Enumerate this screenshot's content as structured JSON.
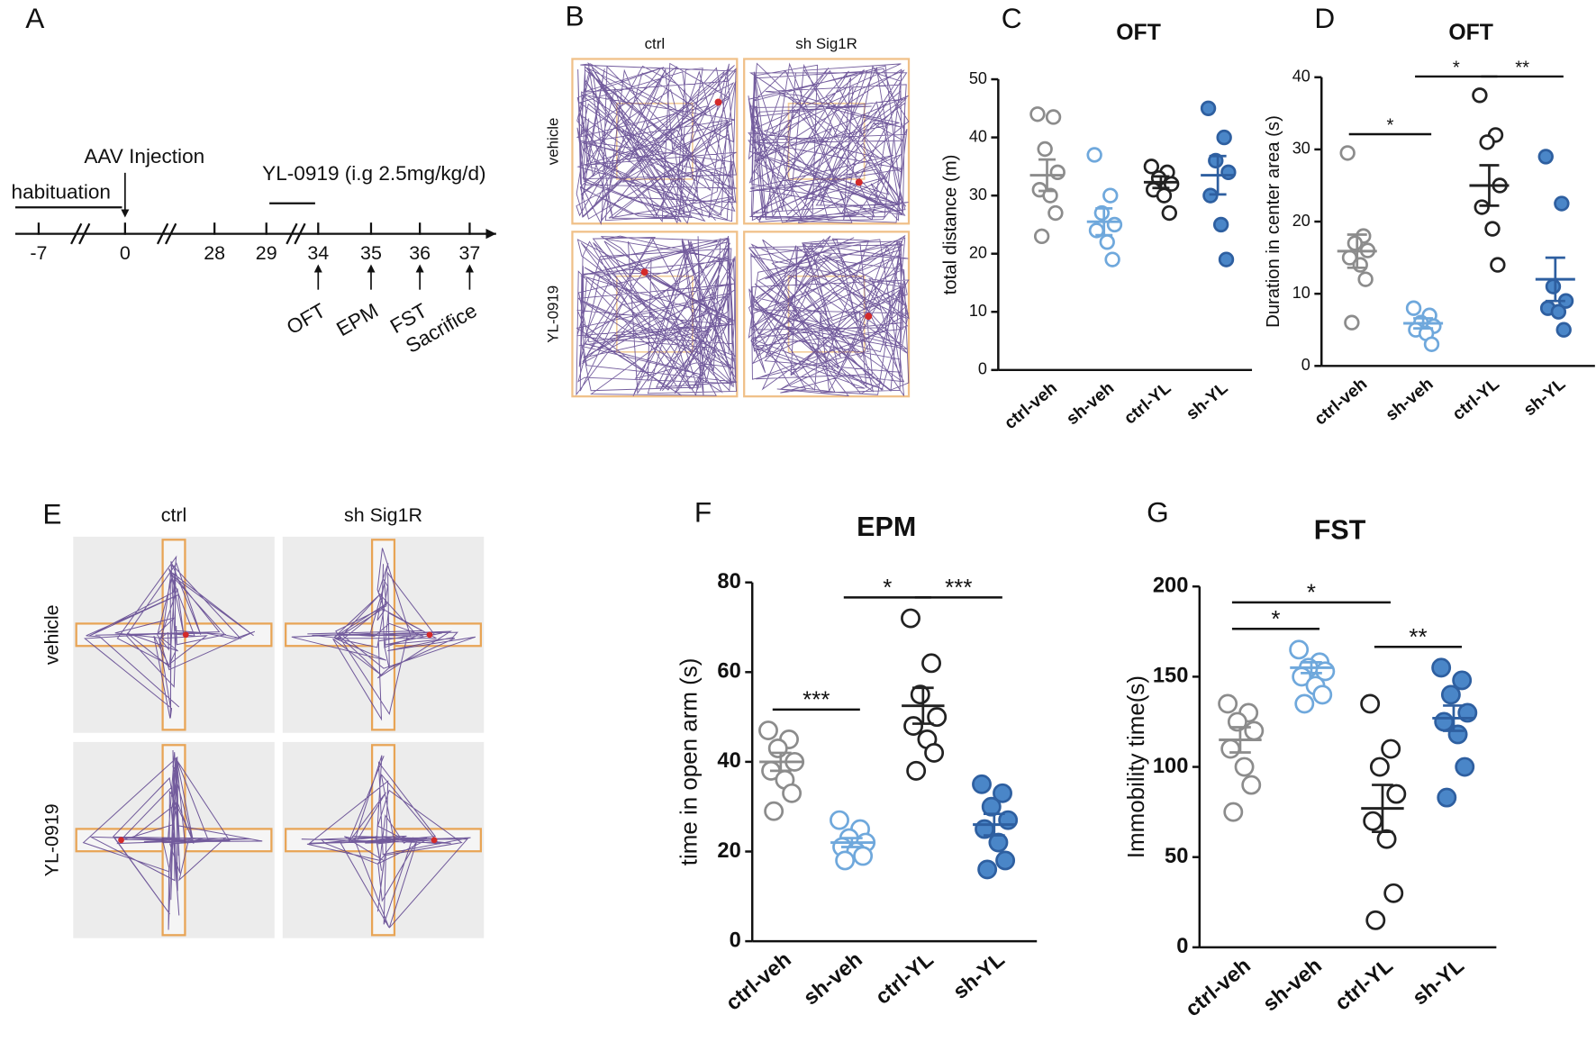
{
  "timeline": {
    "panel": "A",
    "habituation": "habituation",
    "injection": "AAV Injection",
    "treatment": "YL-0919 (i.g 2.5mg/kg/d)",
    "days": [
      -7,
      0,
      28,
      29,
      34,
      35,
      36,
      37
    ],
    "events": [
      "OFT",
      "EPM",
      "FST",
      "Sacrifice"
    ]
  },
  "tracks_oft": {
    "panel": "B",
    "columns": [
      "ctrl",
      "sh Sig1R"
    ],
    "rows": [
      "vehicle",
      "YL-0919"
    ]
  },
  "tracks_epm": {
    "panel": "E",
    "columns": [
      "ctrl",
      "sh Sig1R"
    ],
    "rows": [
      "vehicle",
      "YL-0919"
    ]
  },
  "chart_data": [
    {
      "type": "dot",
      "panel": "C",
      "title": "OFT",
      "ylabel": "total distance (m)",
      "ylim": [
        0,
        50
      ],
      "yticks": [
        0,
        10,
        20,
        30,
        40,
        50
      ],
      "series": [
        {
          "name": "ctrl-veh",
          "color": "#8c8c8c",
          "fill": "#ffffff",
          "values": [
            44,
            43.5,
            38,
            34,
            31,
            30,
            27,
            23
          ],
          "mean": 33.5,
          "sem": 2.7
        },
        {
          "name": "sh-veh",
          "color": "#6fa8dc",
          "fill": "#ffffff",
          "values": [
            37,
            30,
            27,
            25,
            24,
            22,
            19
          ],
          "mean": 25.5,
          "sem": 2.3
        },
        {
          "name": "ctrl-YL",
          "color": "#222222",
          "fill": "#ffffff",
          "values": [
            35,
            34,
            33,
            32,
            31,
            30,
            27
          ],
          "mean": 32.3,
          "sem": 1
        },
        {
          "name": "sh-YL",
          "color": "#2e5fa0",
          "fill": "#4a86c8",
          "values": [
            45,
            40,
            36,
            34,
            30,
            25,
            19
          ],
          "mean": 33.5,
          "sem": 3.3
        }
      ],
      "annotations": []
    },
    {
      "type": "dot",
      "panel": "D",
      "title": "OFT",
      "ylabel": "Duration in center area (s)",
      "ylim": [
        0,
        40
      ],
      "yticks": [
        0,
        10,
        20,
        30,
        40
      ],
      "series": [
        {
          "name": "ctrl-veh",
          "color": "#8c8c8c",
          "fill": "#ffffff",
          "values": [
            29.5,
            18,
            17,
            16,
            15,
            14,
            12,
            6
          ],
          "mean": 15.9,
          "sem": 2.3
        },
        {
          "name": "sh-veh",
          "color": "#6fa8dc",
          "fill": "#ffffff",
          "values": [
            8,
            7,
            6,
            5.5,
            5,
            4.5,
            3
          ],
          "mean": 5.9,
          "sem": 0.7
        },
        {
          "name": "ctrl-YL",
          "color": "#222222",
          "fill": "#ffffff",
          "values": [
            37.5,
            32,
            31,
            25,
            22,
            19,
            14
          ],
          "mean": 25,
          "sem": 2.8
        },
        {
          "name": "sh-YL",
          "color": "#2e5fa0",
          "fill": "#4a86c8",
          "values": [
            29,
            22.5,
            11,
            9,
            8,
            7.5,
            5
          ],
          "mean": 12,
          "sem": 3
        }
      ],
      "annotations": [
        {
          "from": 0,
          "to": 1,
          "label": "*"
        },
        {
          "from": 1,
          "to": 2,
          "label": "*"
        },
        {
          "from": 2,
          "to": 3,
          "label": "**"
        }
      ]
    },
    {
      "type": "dot",
      "panel": "F",
      "title": "EPM",
      "ylabel": "time in open arm (s)",
      "ylim": [
        0,
        80
      ],
      "yticks": [
        0,
        20,
        40,
        60,
        80
      ],
      "series": [
        {
          "name": "ctrl-veh",
          "color": "#8c8c8c",
          "fill": "#ffffff",
          "values": [
            47,
            45,
            43,
            40,
            38,
            36,
            33,
            29
          ],
          "mean": 40,
          "sem": 2
        },
        {
          "name": "sh-veh",
          "color": "#6fa8dc",
          "fill": "#ffffff",
          "values": [
            27,
            25,
            23,
            22,
            21,
            20,
            19,
            18
          ],
          "mean": 22,
          "sem": 1
        },
        {
          "name": "ctrl-YL",
          "color": "#222222",
          "fill": "#ffffff",
          "values": [
            72,
            62,
            55,
            50,
            48,
            45,
            42,
            38
          ],
          "mean": 52.5,
          "sem": 4
        },
        {
          "name": "sh-YL",
          "color": "#2e5fa0",
          "fill": "#4a86c8",
          "values": [
            35,
            33,
            30,
            27,
            25,
            22,
            18,
            16
          ],
          "mean": 26,
          "sem": 2.4
        }
      ],
      "annotations": [
        {
          "from": 0,
          "to": 1,
          "label": "***"
        },
        {
          "from": 1,
          "to": 2,
          "label": "*"
        },
        {
          "from": 2,
          "to": 3,
          "label": "***"
        }
      ]
    },
    {
      "type": "dot",
      "panel": "G",
      "title": "FST",
      "ylabel": "Immobility time(s)",
      "ylim": [
        0,
        200
      ],
      "yticks": [
        0,
        50,
        100,
        150,
        200
      ],
      "series": [
        {
          "name": "ctrl-veh",
          "color": "#8c8c8c",
          "fill": "#ffffff",
          "values": [
            135,
            130,
            125,
            120,
            110,
            100,
            90,
            75
          ],
          "mean": 115,
          "sem": 7
        },
        {
          "name": "sh-veh",
          "color": "#6fa8dc",
          "fill": "#ffffff",
          "values": [
            165,
            158,
            155,
            153,
            150,
            145,
            140,
            135
          ],
          "mean": 155,
          "sem": 3
        },
        {
          "name": "ctrl-YL",
          "color": "#222222",
          "fill": "#ffffff",
          "values": [
            135,
            110,
            100,
            85,
            70,
            60,
            30,
            15
          ],
          "mean": 77,
          "sem": 13
        },
        {
          "name": "sh-YL",
          "color": "#2e5fa0",
          "fill": "#4a86c8",
          "values": [
            155,
            148,
            140,
            130,
            125,
            118,
            100,
            83
          ],
          "mean": 127,
          "sem": 7
        }
      ],
      "annotations": [
        {
          "from": 0,
          "to": 1,
          "label": "*"
        },
        {
          "from": 0,
          "to": 2,
          "label": "*"
        },
        {
          "from": 2,
          "to": 3,
          "label": "**"
        }
      ]
    }
  ]
}
